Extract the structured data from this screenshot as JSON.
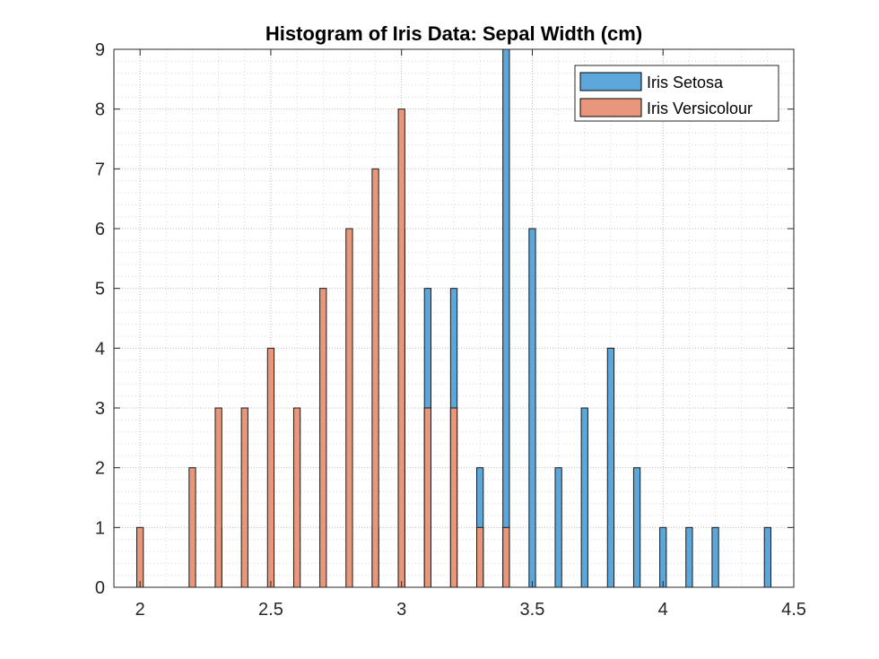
{
  "chart_data": {
    "type": "bar",
    "title": "Histogram of Iris Data: Sepal Width (cm)",
    "xlabel": "",
    "ylabel": "",
    "xlim": [
      1.9,
      4.5
    ],
    "ylim": [
      0,
      9
    ],
    "xticks": [
      2,
      2.5,
      3,
      3.5,
      4,
      4.5
    ],
    "xtick_labels": [
      "2",
      "2.5",
      "3",
      "3.5",
      "4",
      "4.5"
    ],
    "yticks": [
      0,
      1,
      2,
      3,
      4,
      5,
      6,
      7,
      8,
      9
    ],
    "ytick_labels": [
      "0",
      "1",
      "2",
      "3",
      "4",
      "5",
      "6",
      "7",
      "8",
      "9"
    ],
    "grid": true,
    "minor_grid": true,
    "legend_position": "top-right",
    "series": [
      {
        "name": "Iris Setosa",
        "color": "#5ca6d9",
        "x": [
          2.3,
          2.9,
          3.0,
          3.1,
          3.2,
          3.3,
          3.4,
          3.5,
          3.6,
          3.7,
          3.8,
          3.9,
          4.0,
          4.1,
          4.2,
          4.4
        ],
        "values": [
          1,
          1,
          6,
          5,
          5,
          2,
          9,
          6,
          2,
          3,
          4,
          2,
          1,
          1,
          1,
          1
        ]
      },
      {
        "name": "Iris Versicolour",
        "color": "#e8977a",
        "x": [
          2.0,
          2.2,
          2.3,
          2.4,
          2.5,
          2.6,
          2.7,
          2.8,
          2.9,
          3.0,
          3.1,
          3.2,
          3.3,
          3.4
        ],
        "values": [
          1,
          2,
          3,
          3,
          4,
          3,
          5,
          6,
          7,
          8,
          3,
          3,
          1,
          1
        ]
      }
    ]
  }
}
